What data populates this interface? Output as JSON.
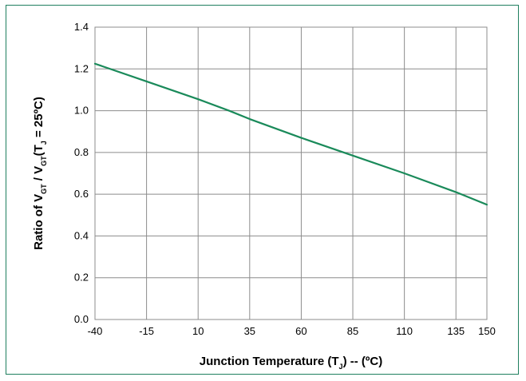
{
  "chart_data": {
    "type": "line",
    "title": "",
    "xlabel": {
      "parts": [
        {
          "text": "Junction Temperature (T"
        },
        {
          "text": "J",
          "sub": true
        },
        {
          "text": ") -- (ºC)"
        }
      ]
    },
    "ylabel": {
      "parts": [
        {
          "text": "Ratio of V"
        },
        {
          "text": "GT",
          "sub": true
        },
        {
          "text": " / V"
        },
        {
          "text": "GT",
          "sub": true
        },
        {
          "text": "(T"
        },
        {
          "text": "J",
          "sub": true
        },
        {
          "text": " = 25ºC)"
        }
      ]
    },
    "xlim": [
      -40,
      150
    ],
    "ylim": [
      0.0,
      1.4
    ],
    "xticks": [
      -40,
      -15,
      10,
      35,
      60,
      85,
      110,
      135,
      150
    ],
    "yticks": [
      0.0,
      0.2,
      0.4,
      0.6,
      0.8,
      1.0,
      1.2,
      1.4
    ],
    "ytick_labels": [
      "0.0",
      "0.2",
      "0.4",
      "0.6",
      "0.8",
      "1.0",
      "1.2",
      "1.4"
    ],
    "grid": true,
    "series": [
      {
        "color": "#1a8a5a",
        "x": [
          -40,
          -15,
          10,
          25,
          35,
          60,
          85,
          110,
          135,
          150
        ],
        "y": [
          1.225,
          1.14,
          1.055,
          1.0,
          0.96,
          0.87,
          0.785,
          0.7,
          0.61,
          0.55
        ]
      }
    ]
  },
  "colors": {
    "frame": "#1f7f5f",
    "grid": "#8c8c8c",
    "line": "#1a8a5a"
  }
}
